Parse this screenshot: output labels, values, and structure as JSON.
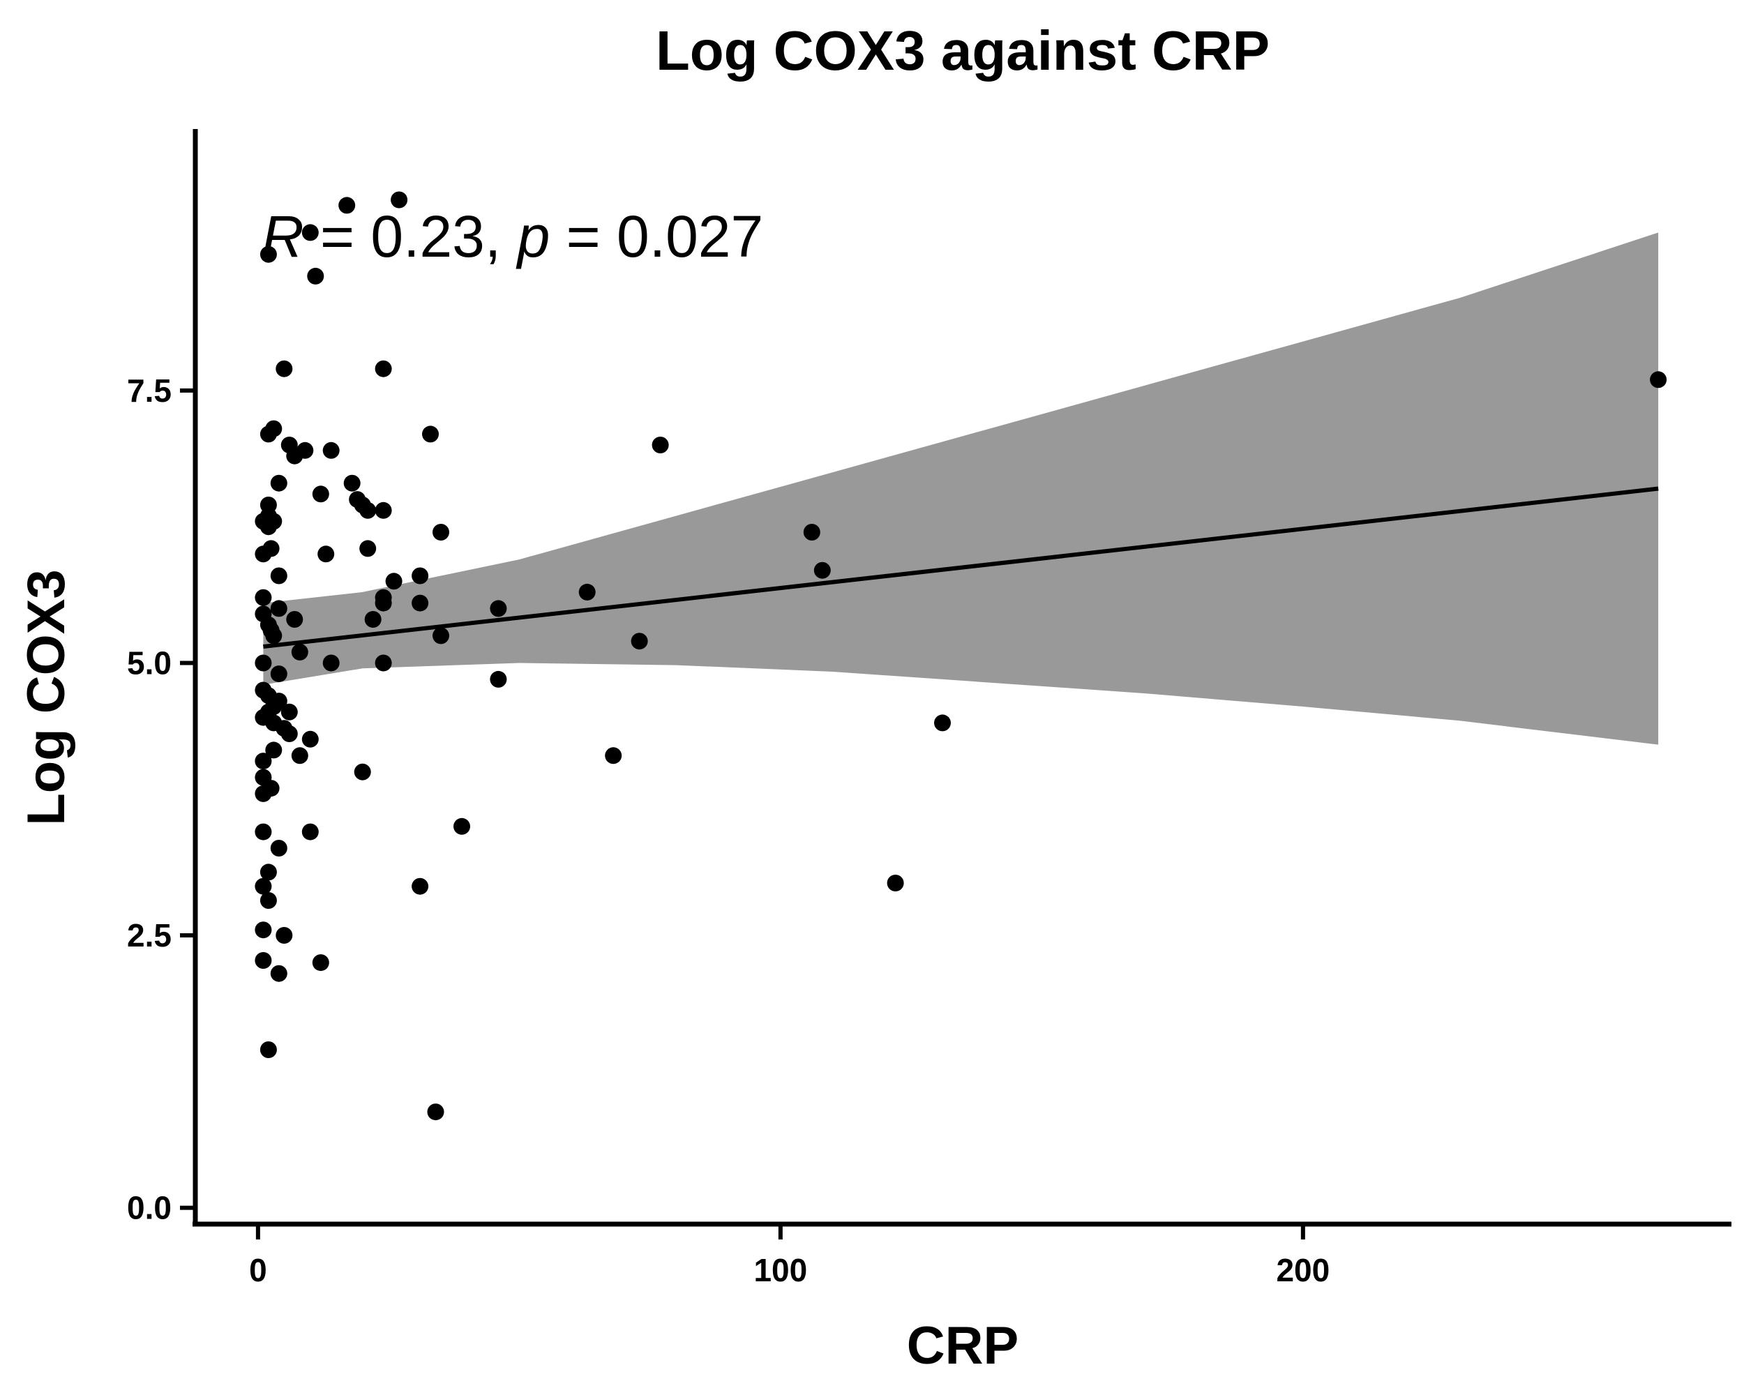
{
  "chart_data": {
    "type": "scatter",
    "title": "Log COX3 against CRP",
    "xlabel": "CRP",
    "ylabel": "Log COX3",
    "xlim": [
      -12,
      282
    ],
    "ylim": [
      -0.15,
      9.9
    ],
    "x_ticks": [
      0,
      100,
      200
    ],
    "x_tick_labels": [
      "0",
      "100",
      "200"
    ],
    "y_ticks": [
      0.0,
      2.5,
      5.0,
      7.5
    ],
    "y_tick_labels": [
      "0.0",
      "2.5",
      "5.0",
      "7.5"
    ],
    "grid": false,
    "annotation": {
      "r_symbol": "R",
      "r_text": " = 0.23, ",
      "p_symbol": "p",
      "p_text": " = 0.027"
    },
    "colors": {
      "points": "#000000",
      "line": "#000000",
      "band": "#999999",
      "axis": "#000000"
    },
    "regression": {
      "x": [
        1,
        268
      ],
      "y": [
        5.15,
        6.6
      ]
    },
    "confidence_band": {
      "x": [
        1,
        20,
        50,
        80,
        110,
        140,
        170,
        200,
        230,
        268
      ],
      "upper": [
        5.55,
        5.65,
        5.95,
        6.35,
        6.75,
        7.15,
        7.55,
        7.95,
        8.35,
        8.95
      ],
      "lower": [
        4.8,
        4.95,
        5.0,
        4.98,
        4.92,
        4.82,
        4.72,
        4.6,
        4.47,
        4.25
      ]
    },
    "points": [
      {
        "x": 1,
        "y": 6.3
      },
      {
        "x": 1,
        "y": 6.0
      },
      {
        "x": 1,
        "y": 5.6
      },
      {
        "x": 1,
        "y": 5.45
      },
      {
        "x": 1,
        "y": 5.0
      },
      {
        "x": 1,
        "y": 4.75
      },
      {
        "x": 1,
        "y": 4.5
      },
      {
        "x": 1,
        "y": 4.1
      },
      {
        "x": 1,
        "y": 3.95
      },
      {
        "x": 1,
        "y": 3.8
      },
      {
        "x": 1,
        "y": 3.45
      },
      {
        "x": 1,
        "y": 2.95
      },
      {
        "x": 1,
        "y": 2.55
      },
      {
        "x": 1,
        "y": 2.27
      },
      {
        "x": 2,
        "y": 8.75
      },
      {
        "x": 2,
        "y": 7.1
      },
      {
        "x": 2,
        "y": 6.45
      },
      {
        "x": 2,
        "y": 6.35
      },
      {
        "x": 2,
        "y": 6.25
      },
      {
        "x": 2,
        "y": 5.35
      },
      {
        "x": 2,
        "y": 4.7
      },
      {
        "x": 2,
        "y": 4.55
      },
      {
        "x": 2,
        "y": 3.08
      },
      {
        "x": 2,
        "y": 2.82
      },
      {
        "x": 2,
        "y": 1.45
      },
      {
        "x": 2.5,
        "y": 6.05
      },
      {
        "x": 2.5,
        "y": 5.3
      },
      {
        "x": 2.5,
        "y": 3.85
      },
      {
        "x": 3,
        "y": 7.15
      },
      {
        "x": 3,
        "y": 6.3
      },
      {
        "x": 3,
        "y": 5.25
      },
      {
        "x": 3,
        "y": 4.6
      },
      {
        "x": 3,
        "y": 4.45
      },
      {
        "x": 3,
        "y": 4.2
      },
      {
        "x": 4,
        "y": 6.65
      },
      {
        "x": 4,
        "y": 5.8
      },
      {
        "x": 4,
        "y": 5.5
      },
      {
        "x": 4,
        "y": 4.9
      },
      {
        "x": 4,
        "y": 4.65
      },
      {
        "x": 4,
        "y": 3.3
      },
      {
        "x": 4,
        "y": 2.15
      },
      {
        "x": 5,
        "y": 7.7
      },
      {
        "x": 5,
        "y": 4.4
      },
      {
        "x": 5,
        "y": 2.5
      },
      {
        "x": 6,
        "y": 7.0
      },
      {
        "x": 6,
        "y": 4.55
      },
      {
        "x": 6,
        "y": 4.35
      },
      {
        "x": 7,
        "y": 6.9
      },
      {
        "x": 7,
        "y": 5.4
      },
      {
        "x": 8,
        "y": 5.1
      },
      {
        "x": 8,
        "y": 4.15
      },
      {
        "x": 9,
        "y": 6.95
      },
      {
        "x": 10,
        "y": 8.95
      },
      {
        "x": 10,
        "y": 4.3
      },
      {
        "x": 10,
        "y": 3.45
      },
      {
        "x": 11,
        "y": 8.55
      },
      {
        "x": 12,
        "y": 6.55
      },
      {
        "x": 12,
        "y": 2.25
      },
      {
        "x": 13,
        "y": 6.0
      },
      {
        "x": 14,
        "y": 6.95
      },
      {
        "x": 14,
        "y": 5.0
      },
      {
        "x": 17,
        "y": 9.2
      },
      {
        "x": 18,
        "y": 6.65
      },
      {
        "x": 19,
        "y": 6.5
      },
      {
        "x": 20,
        "y": 6.45
      },
      {
        "x": 20,
        "y": 4.0
      },
      {
        "x": 21,
        "y": 6.4
      },
      {
        "x": 21,
        "y": 6.05
      },
      {
        "x": 22,
        "y": 5.4
      },
      {
        "x": 24,
        "y": 7.7
      },
      {
        "x": 24,
        "y": 6.4
      },
      {
        "x": 24,
        "y": 5.6
      },
      {
        "x": 24,
        "y": 5.55
      },
      {
        "x": 24,
        "y": 5.0
      },
      {
        "x": 26,
        "y": 5.75
      },
      {
        "x": 27,
        "y": 9.25
      },
      {
        "x": 31,
        "y": 5.8
      },
      {
        "x": 31,
        "y": 5.55
      },
      {
        "x": 31,
        "y": 2.95
      },
      {
        "x": 33,
        "y": 7.1
      },
      {
        "x": 34,
        "y": 0.88
      },
      {
        "x": 35,
        "y": 6.2
      },
      {
        "x": 35,
        "y": 5.25
      },
      {
        "x": 39,
        "y": 3.5
      },
      {
        "x": 46,
        "y": 5.5
      },
      {
        "x": 46,
        "y": 4.85
      },
      {
        "x": 63,
        "y": 5.65
      },
      {
        "x": 68,
        "y": 4.15
      },
      {
        "x": 73,
        "y": 5.2
      },
      {
        "x": 77,
        "y": 7.0
      },
      {
        "x": 106,
        "y": 6.2
      },
      {
        "x": 108,
        "y": 5.85
      },
      {
        "x": 122,
        "y": 2.98
      },
      {
        "x": 131,
        "y": 4.45
      },
      {
        "x": 268,
        "y": 7.6
      }
    ]
  }
}
